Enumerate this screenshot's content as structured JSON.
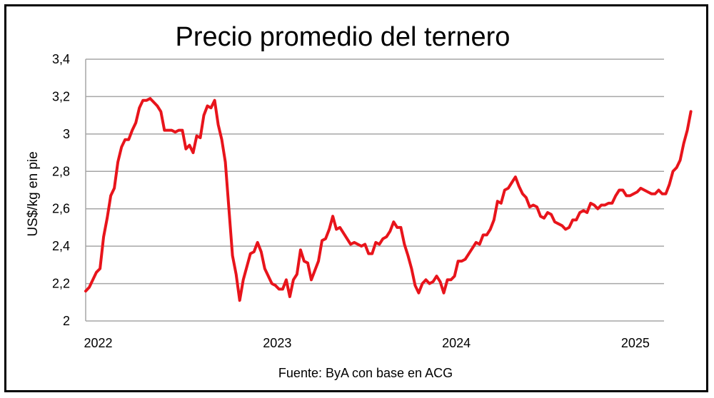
{
  "chart_data": {
    "type": "line",
    "title": "Precio promedio del ternero",
    "ylabel": "US$/kg en pie",
    "xlabel": "",
    "source_note": "Fuente: ByA con base en ACG",
    "ylim": [
      2,
      3.4
    ],
    "xlim": [
      2021.93,
      2025.16
    ],
    "y_ticks": [
      "2",
      "2,2",
      "2,4",
      "2,6",
      "2,8",
      "3",
      "3,2",
      "3,4"
    ],
    "x_ticks": [
      {
        "value": 2022,
        "label": "2022"
      },
      {
        "value": 2023,
        "label": "2023"
      },
      {
        "value": 2024,
        "label": "2024"
      },
      {
        "value": 2025,
        "label": "2025"
      }
    ],
    "grid": true,
    "legend": "none",
    "series": [
      {
        "color": "#e8141b",
        "points": [
          [
            2021.93,
            2.16
          ],
          [
            2021.95,
            2.18
          ],
          [
            2021.97,
            2.22
          ],
          [
            2021.99,
            2.26
          ],
          [
            2022.01,
            2.28
          ],
          [
            2022.03,
            2.45
          ],
          [
            2022.05,
            2.55
          ],
          [
            2022.07,
            2.67
          ],
          [
            2022.09,
            2.71
          ],
          [
            2022.11,
            2.85
          ],
          [
            2022.13,
            2.93
          ],
          [
            2022.15,
            2.97
          ],
          [
            2022.17,
            2.97
          ],
          [
            2022.19,
            3.02
          ],
          [
            2022.21,
            3.06
          ],
          [
            2022.23,
            3.14
          ],
          [
            2022.25,
            3.18
          ],
          [
            2022.27,
            3.18
          ],
          [
            2022.29,
            3.19
          ],
          [
            2022.31,
            3.17
          ],
          [
            2022.33,
            3.15
          ],
          [
            2022.35,
            3.12
          ],
          [
            2022.37,
            3.02
          ],
          [
            2022.39,
            3.02
          ],
          [
            2022.41,
            3.02
          ],
          [
            2022.43,
            3.01
          ],
          [
            2022.45,
            3.02
          ],
          [
            2022.47,
            3.02
          ],
          [
            2022.49,
            2.92
          ],
          [
            2022.51,
            2.94
          ],
          [
            2022.53,
            2.9
          ],
          [
            2022.55,
            2.99
          ],
          [
            2022.57,
            2.98
          ],
          [
            2022.59,
            3.1
          ],
          [
            2022.61,
            3.15
          ],
          [
            2022.63,
            3.14
          ],
          [
            2022.65,
            3.18
          ],
          [
            2022.67,
            3.05
          ],
          [
            2022.69,
            2.97
          ],
          [
            2022.71,
            2.85
          ],
          [
            2022.73,
            2.6
          ],
          [
            2022.75,
            2.35
          ],
          [
            2022.77,
            2.25
          ],
          [
            2022.79,
            2.11
          ],
          [
            2022.81,
            2.22
          ],
          [
            2022.83,
            2.29
          ],
          [
            2022.85,
            2.36
          ],
          [
            2022.87,
            2.37
          ],
          [
            2022.89,
            2.42
          ],
          [
            2022.91,
            2.37
          ],
          [
            2022.93,
            2.28
          ],
          [
            2022.95,
            2.24
          ],
          [
            2022.97,
            2.2
          ],
          [
            2022.99,
            2.19
          ],
          [
            2023.01,
            2.17
          ],
          [
            2023.03,
            2.17
          ],
          [
            2023.05,
            2.22
          ],
          [
            2023.07,
            2.13
          ],
          [
            2023.09,
            2.22
          ],
          [
            2023.11,
            2.25
          ],
          [
            2023.13,
            2.38
          ],
          [
            2023.15,
            2.32
          ],
          [
            2023.17,
            2.31
          ],
          [
            2023.19,
            2.22
          ],
          [
            2023.21,
            2.27
          ],
          [
            2023.23,
            2.32
          ],
          [
            2023.25,
            2.43
          ],
          [
            2023.27,
            2.44
          ],
          [
            2023.29,
            2.49
          ],
          [
            2023.31,
            2.56
          ],
          [
            2023.33,
            2.49
          ],
          [
            2023.35,
            2.5
          ],
          [
            2023.37,
            2.47
          ],
          [
            2023.39,
            2.44
          ],
          [
            2023.41,
            2.41
          ],
          [
            2023.43,
            2.42
          ],
          [
            2023.45,
            2.41
          ],
          [
            2023.47,
            2.4
          ],
          [
            2023.49,
            2.41
          ],
          [
            2023.51,
            2.36
          ],
          [
            2023.53,
            2.36
          ],
          [
            2023.55,
            2.42
          ],
          [
            2023.57,
            2.41
          ],
          [
            2023.59,
            2.44
          ],
          [
            2023.61,
            2.45
          ],
          [
            2023.63,
            2.48
          ],
          [
            2023.65,
            2.53
          ],
          [
            2023.67,
            2.5
          ],
          [
            2023.69,
            2.5
          ],
          [
            2023.71,
            2.41
          ],
          [
            2023.73,
            2.35
          ],
          [
            2023.75,
            2.28
          ],
          [
            2023.77,
            2.19
          ],
          [
            2023.79,
            2.15
          ],
          [
            2023.81,
            2.2
          ],
          [
            2023.83,
            2.22
          ],
          [
            2023.85,
            2.2
          ],
          [
            2023.87,
            2.21
          ],
          [
            2023.89,
            2.24
          ],
          [
            2023.91,
            2.21
          ],
          [
            2023.93,
            2.15
          ],
          [
            2023.95,
            2.22
          ],
          [
            2023.97,
            2.22
          ],
          [
            2023.99,
            2.24
          ],
          [
            2024.01,
            2.32
          ],
          [
            2024.03,
            2.32
          ],
          [
            2024.05,
            2.33
          ],
          [
            2024.07,
            2.36
          ],
          [
            2024.09,
            2.39
          ],
          [
            2024.11,
            2.42
          ],
          [
            2024.13,
            2.41
          ],
          [
            2024.15,
            2.46
          ],
          [
            2024.17,
            2.46
          ],
          [
            2024.19,
            2.49
          ],
          [
            2024.21,
            2.54
          ],
          [
            2024.23,
            2.64
          ],
          [
            2024.25,
            2.63
          ],
          [
            2024.27,
            2.7
          ],
          [
            2024.29,
            2.71
          ],
          [
            2024.31,
            2.74
          ],
          [
            2024.33,
            2.77
          ],
          [
            2024.35,
            2.72
          ],
          [
            2024.37,
            2.68
          ],
          [
            2024.39,
            2.66
          ],
          [
            2024.41,
            2.61
          ],
          [
            2024.43,
            2.62
          ],
          [
            2024.45,
            2.61
          ],
          [
            2024.47,
            2.56
          ],
          [
            2024.49,
            2.55
          ],
          [
            2024.51,
            2.58
          ],
          [
            2024.53,
            2.57
          ],
          [
            2024.55,
            2.53
          ],
          [
            2024.57,
            2.52
          ],
          [
            2024.59,
            2.51
          ],
          [
            2024.61,
            2.49
          ],
          [
            2024.63,
            2.5
          ],
          [
            2024.65,
            2.54
          ],
          [
            2024.67,
            2.54
          ],
          [
            2024.69,
            2.58
          ],
          [
            2024.71,
            2.59
          ],
          [
            2024.73,
            2.58
          ],
          [
            2024.75,
            2.63
          ],
          [
            2024.77,
            2.62
          ],
          [
            2024.79,
            2.6
          ],
          [
            2024.81,
            2.62
          ],
          [
            2024.83,
            2.62
          ],
          [
            2024.85,
            2.63
          ],
          [
            2024.87,
            2.63
          ],
          [
            2024.89,
            2.67
          ],
          [
            2024.91,
            2.7
          ],
          [
            2024.93,
            2.7
          ],
          [
            2024.95,
            2.67
          ],
          [
            2024.97,
            2.67
          ],
          [
            2024.99,
            2.68
          ],
          [
            2025.01,
            2.69
          ],
          [
            2025.03,
            2.71
          ],
          [
            2025.05,
            2.7
          ],
          [
            2025.07,
            2.69
          ],
          [
            2025.09,
            2.68
          ],
          [
            2025.11,
            2.68
          ],
          [
            2025.13,
            2.7
          ],
          [
            2025.15,
            2.68
          ],
          [
            2025.17,
            2.68
          ],
          [
            2025.19,
            2.73
          ],
          [
            2025.21,
            2.8
          ],
          [
            2025.23,
            2.82
          ],
          [
            2025.25,
            2.86
          ],
          [
            2025.27,
            2.95
          ],
          [
            2025.29,
            3.02
          ],
          [
            2025.31,
            3.12
          ]
        ]
      }
    ]
  }
}
